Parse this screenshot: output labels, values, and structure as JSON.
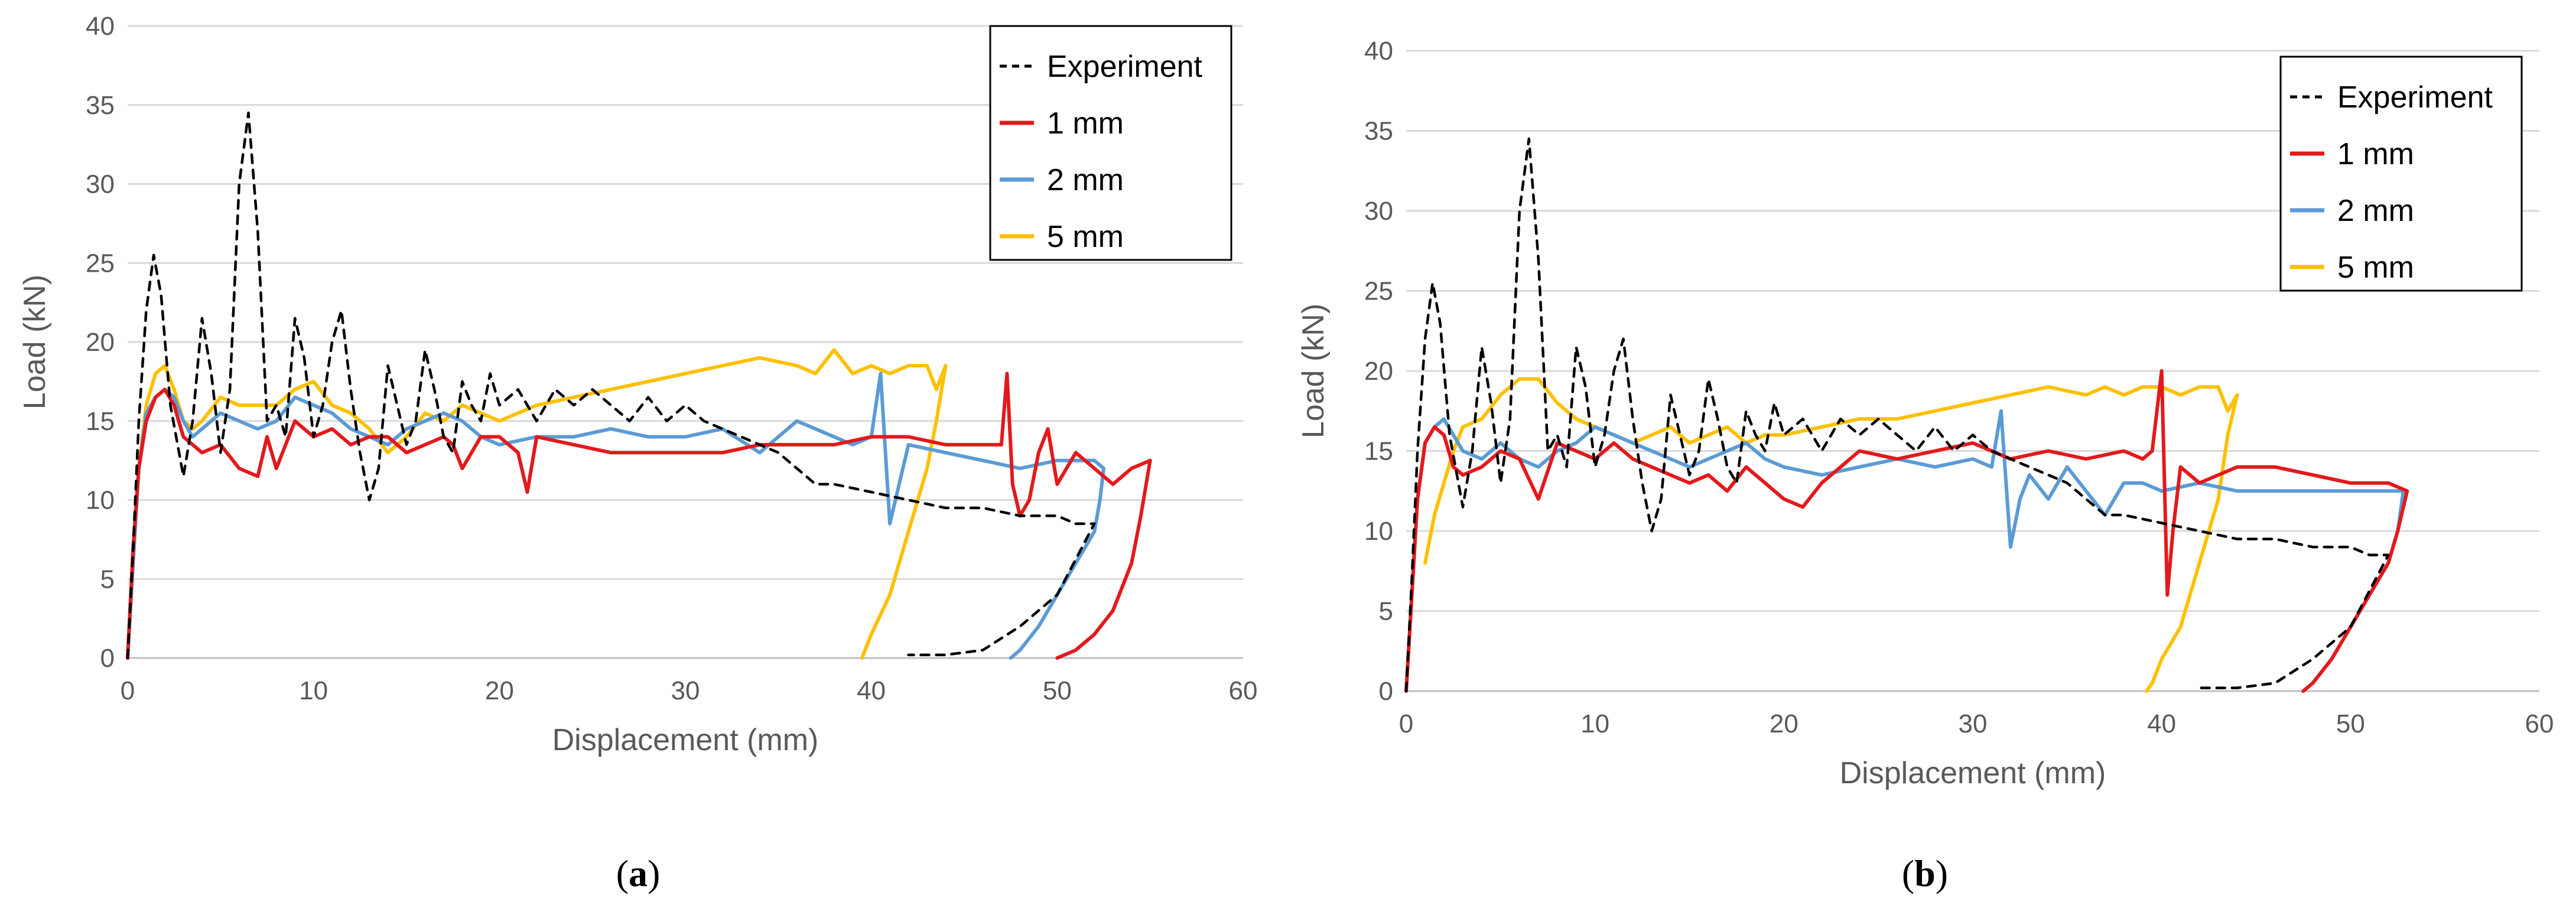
{
  "chart_data": [
    {
      "type": "line",
      "panel_label": "a",
      "title": "",
      "xlabel": "Displacement (mm)",
      "ylabel": "Load (kN)",
      "xlim": [
        0,
        60
      ],
      "ylim": [
        0,
        40
      ],
      "xticks": [
        0,
        10,
        20,
        30,
        40,
        50,
        60
      ],
      "yticks": [
        0,
        5,
        10,
        15,
        20,
        25,
        30,
        35,
        40
      ],
      "grid": true,
      "legend_position": "top-right",
      "series": [
        {
          "name": "Experiment",
          "color": "#000000",
          "dash": true,
          "x": [
            0,
            0.3,
            0.6,
            1,
            1.4,
            1.8,
            2.3,
            3,
            3.5,
            4,
            4.5,
            5,
            5.5,
            6,
            6.5,
            7,
            7.5,
            8,
            8.5,
            9,
            9.5,
            10,
            10.5,
            11,
            11.5,
            12,
            12.5,
            13,
            13.5,
            14,
            14.5,
            15,
            15.5,
            16,
            16.5,
            17,
            17.5,
            18,
            18.5,
            19,
            19.5,
            20,
            21,
            22,
            23,
            24,
            25,
            26,
            27,
            28,
            29,
            30,
            31,
            32,
            33,
            34,
            35,
            36,
            37,
            38,
            40,
            42,
            44,
            46,
            48,
            50,
            51,
            52,
            50,
            48,
            46,
            44,
            43,
            42
          ],
          "y": [
            0,
            7,
            15,
            22,
            25.5,
            23,
            16,
            11.5,
            15,
            21.5,
            18,
            13,
            17,
            30,
            34.5,
            27,
            15,
            16,
            14,
            21.5,
            19,
            14,
            16,
            20,
            22,
            17,
            13,
            10,
            12,
            18.5,
            16,
            13.5,
            15,
            19.5,
            17,
            14,
            13,
            17.5,
            16,
            15,
            18,
            16,
            17,
            15,
            17,
            16,
            17,
            16,
            15,
            16.5,
            15,
            16,
            15,
            14.5,
            14,
            13.5,
            13,
            12,
            11,
            11,
            10.5,
            10,
            9.5,
            9.5,
            9,
            9,
            8.5,
            8.5,
            4,
            2,
            0.5,
            0.2,
            0.2,
            0.2
          ]
        },
        {
          "name": "1 mm",
          "color": "#e3191c",
          "dash": false,
          "x": [
            0,
            0.3,
            0.6,
            1,
            1.5,
            2,
            2.5,
            3,
            3.5,
            4,
            5,
            6,
            7,
            7.5,
            8,
            9,
            10,
            11,
            12,
            13,
            14,
            15,
            16,
            17,
            17.5,
            18,
            19,
            20,
            21,
            21.5,
            22,
            24,
            26,
            28,
            30,
            32,
            34,
            36,
            38,
            40,
            42,
            44,
            46,
            47,
            47.3,
            47.6,
            48,
            48.5,
            49,
            49.5,
            50,
            51,
            52,
            53,
            54,
            55,
            54.5,
            54,
            53,
            52,
            51,
            50
          ],
          "y": [
            0,
            7,
            12,
            15,
            16.5,
            17,
            16,
            14,
            13.5,
            13,
            13.5,
            12,
            11.5,
            14,
            12,
            15,
            14,
            14.5,
            13.5,
            14,
            14,
            13,
            13.5,
            14,
            13.5,
            12,
            14,
            14,
            13,
            10.5,
            14,
            13.5,
            13,
            13,
            13,
            13,
            13.5,
            13.5,
            13.5,
            14,
            14,
            13.5,
            13.5,
            13.5,
            18,
            11,
            9,
            10,
            13,
            14.5,
            11,
            13,
            12,
            11,
            12,
            12.5,
            9,
            6,
            3,
            1.5,
            0.5,
            0
          ]
        },
        {
          "name": "2 mm",
          "color": "#5b9bd5",
          "dash": false,
          "x": [
            0,
            0.3,
            0.6,
            1,
            1.5,
            2,
            2.5,
            3,
            3.5,
            4,
            5,
            6,
            7,
            8,
            9,
            10,
            11,
            12,
            13,
            14,
            15,
            16,
            17,
            18,
            19,
            20,
            22,
            24,
            26,
            28,
            30,
            32,
            34,
            36,
            38,
            39,
            40,
            40.5,
            41,
            42,
            44,
            46,
            48,
            50,
            52,
            52.5,
            52.3,
            52,
            51,
            50,
            49,
            48,
            47.5
          ],
          "y": [
            0,
            6,
            12,
            15.5,
            16.5,
            17,
            16.5,
            15,
            14,
            14.5,
            15.5,
            15,
            14.5,
            15,
            16.5,
            16,
            15.5,
            14.5,
            14,
            13.5,
            14.5,
            15,
            15.5,
            15,
            14,
            13.5,
            14,
            14,
            14.5,
            14,
            14,
            14.5,
            13,
            15,
            14,
            13.5,
            14,
            18,
            8.5,
            13.5,
            13,
            12.5,
            12,
            12.5,
            12.5,
            12,
            10,
            8,
            6,
            4,
            2,
            0.5,
            0
          ]
        },
        {
          "name": "5 mm",
          "color": "#ffc000",
          "dash": false,
          "x": [
            0,
            0.3,
            0.6,
            1,
            1.5,
            2,
            2.5,
            3,
            3.5,
            4,
            5,
            6,
            7,
            8,
            9,
            10,
            11,
            12,
            13,
            14,
            15,
            16,
            17,
            18,
            19,
            20,
            22,
            24,
            26,
            28,
            30,
            32,
            34,
            36,
            37,
            38,
            39,
            40,
            41,
            42,
            43,
            43.5,
            44,
            43.5,
            43,
            42,
            41,
            40,
            39.5
          ],
          "y": [
            0,
            7,
            12,
            16,
            18,
            18.5,
            17,
            15,
            14.5,
            15,
            16.5,
            16,
            16,
            16,
            17,
            17.5,
            16,
            15.5,
            14.5,
            13,
            14,
            15.5,
            15,
            16,
            15.5,
            15,
            16,
            16.5,
            17,
            17.5,
            18,
            18.5,
            19,
            18.5,
            18,
            19.5,
            18,
            18.5,
            18,
            18.5,
            18.5,
            17,
            18.5,
            15,
            12,
            8,
            4,
            1.5,
            0
          ]
        }
      ]
    },
    {
      "type": "line",
      "panel_label": "b",
      "title": "",
      "xlabel": "Displacement (mm)",
      "ylabel": "Load (kN)",
      "xlim": [
        0,
        60
      ],
      "ylim": [
        0,
        40
      ],
      "xticks": [
        0,
        10,
        20,
        30,
        40,
        50,
        60
      ],
      "yticks": [
        0,
        5,
        10,
        15,
        20,
        25,
        30,
        35,
        40
      ],
      "grid": true,
      "legend_position": "top-right",
      "series": [
        {
          "name": "Experiment",
          "color": "#000000",
          "dash": true,
          "x": [
            0,
            0.3,
            0.6,
            1,
            1.4,
            1.8,
            2.3,
            3,
            3.5,
            4,
            4.5,
            5,
            5.5,
            6,
            6.5,
            7,
            7.5,
            8,
            8.5,
            9,
            9.5,
            10,
            10.5,
            11,
            11.5,
            12,
            12.5,
            13,
            13.5,
            14,
            14.5,
            15,
            15.5,
            16,
            16.5,
            17,
            17.5,
            18,
            18.5,
            19,
            19.5,
            20,
            21,
            22,
            23,
            24,
            25,
            26,
            27,
            28,
            29,
            30,
            31,
            32,
            33,
            34,
            35,
            36,
            37,
            38,
            40,
            42,
            44,
            46,
            48,
            50,
            51,
            52,
            50,
            48,
            46,
            44,
            43,
            42
          ],
          "y": [
            0,
            7,
            15,
            22,
            25.5,
            23,
            16,
            11.5,
            15,
            21.5,
            18,
            13,
            17,
            30,
            34.5,
            27,
            15,
            16,
            14,
            21.5,
            19,
            14,
            16,
            20,
            22,
            17,
            13,
            10,
            12,
            18.5,
            16,
            13.5,
            15,
            19.5,
            17,
            14,
            13,
            17.5,
            16,
            15,
            18,
            16,
            17,
            15,
            17,
            16,
            17,
            16,
            15,
            16.5,
            15,
            16,
            15,
            14.5,
            14,
            13.5,
            13,
            12,
            11,
            11,
            10.5,
            10,
            9.5,
            9.5,
            9,
            9,
            8.5,
            8.5,
            4,
            2,
            0.5,
            0.2,
            0.2,
            0.2
          ]
        },
        {
          "name": "1 mm",
          "color": "#e3191c",
          "dash": false,
          "x": [
            0,
            0.3,
            0.6,
            1,
            1.5,
            2,
            2.5,
            3,
            4,
            5,
            6,
            7,
            8,
            9,
            10,
            11,
            12,
            13,
            14,
            15,
            16,
            17,
            18,
            19,
            20,
            21,
            22,
            24,
            26,
            28,
            30,
            32,
            34,
            36,
            38,
            39,
            39.5,
            40,
            40.3,
            40.6,
            41,
            42,
            43,
            44,
            46,
            48,
            50,
            51,
            52,
            53,
            52.5,
            52,
            51,
            50,
            49,
            48,
            47.5
          ],
          "y": [
            0,
            6,
            12,
            15.5,
            16.5,
            16,
            14,
            13.5,
            14,
            15,
            14.5,
            12,
            15.5,
            15,
            14.5,
            15.5,
            14.5,
            14,
            13.5,
            13,
            13.5,
            12.5,
            14,
            13,
            12,
            11.5,
            13,
            15,
            14.5,
            15,
            15.5,
            14.5,
            15,
            14.5,
            15,
            14.5,
            15,
            20,
            6,
            10,
            14,
            13,
            13.5,
            14,
            14,
            13.5,
            13,
            13,
            13,
            12.5,
            10,
            8,
            6,
            4,
            2,
            0.5,
            0
          ]
        },
        {
          "name": "2 mm",
          "color": "#5b9bd5",
          "dash": false,
          "x": [
            0,
            0.3,
            0.6,
            1,
            1.5,
            2,
            2.5,
            3,
            4,
            5,
            6,
            7,
            8,
            9,
            10,
            11,
            12,
            13,
            14,
            15,
            16,
            17,
            18,
            19,
            20,
            22,
            24,
            26,
            28,
            30,
            31,
            31.5,
            32,
            32.5,
            33,
            34,
            35,
            36,
            37,
            38,
            39,
            40,
            42,
            44,
            46,
            48,
            50,
            52,
            53,
            52.8,
            52.5,
            52,
            51,
            50,
            49,
            48,
            47.5
          ],
          "y": [
            0,
            6,
            12,
            15.5,
            16.5,
            17,
            16,
            15,
            14.5,
            15.5,
            14.5,
            14,
            15,
            15.5,
            16.5,
            16,
            15.5,
            15,
            14.5,
            14,
            14.5,
            15,
            15.5,
            14.5,
            14,
            13.5,
            14,
            14.5,
            14,
            14.5,
            14,
            17.5,
            9,
            12,
            13.5,
            12,
            14,
            12.5,
            11,
            13,
            13,
            12.5,
            13,
            12.5,
            12.5,
            12.5,
            12.5,
            12.5,
            12.5,
            12.5,
            10,
            8,
            6,
            4,
            2,
            0.5,
            0
          ]
        },
        {
          "name": "5 mm",
          "color": "#ffc000",
          "dash": false,
          "x": [
            1,
            1.5,
            2,
            2.5,
            3,
            4,
            5,
            6,
            7,
            8,
            9,
            10,
            11,
            12,
            13,
            14,
            15,
            16,
            17,
            18,
            19,
            20,
            22,
            24,
            26,
            28,
            30,
            32,
            34,
            36,
            37,
            38,
            39,
            40,
            41,
            42,
            43,
            43.5,
            44,
            43.5,
            43,
            42,
            41,
            40,
            39.5,
            39.2
          ],
          "y": [
            8,
            11,
            13,
            15,
            16.5,
            17,
            18.5,
            19.5,
            19.5,
            18,
            17,
            16.5,
            16,
            15.5,
            16,
            16.5,
            15.5,
            16,
            16.5,
            15.5,
            16,
            16,
            16.5,
            17,
            17,
            17.5,
            18,
            18.5,
            19,
            18.5,
            19,
            18.5,
            19,
            19,
            18.5,
            19,
            19,
            17.5,
            18.5,
            16,
            12,
            8,
            4,
            2,
            0.5,
            0
          ]
        }
      ]
    }
  ]
}
